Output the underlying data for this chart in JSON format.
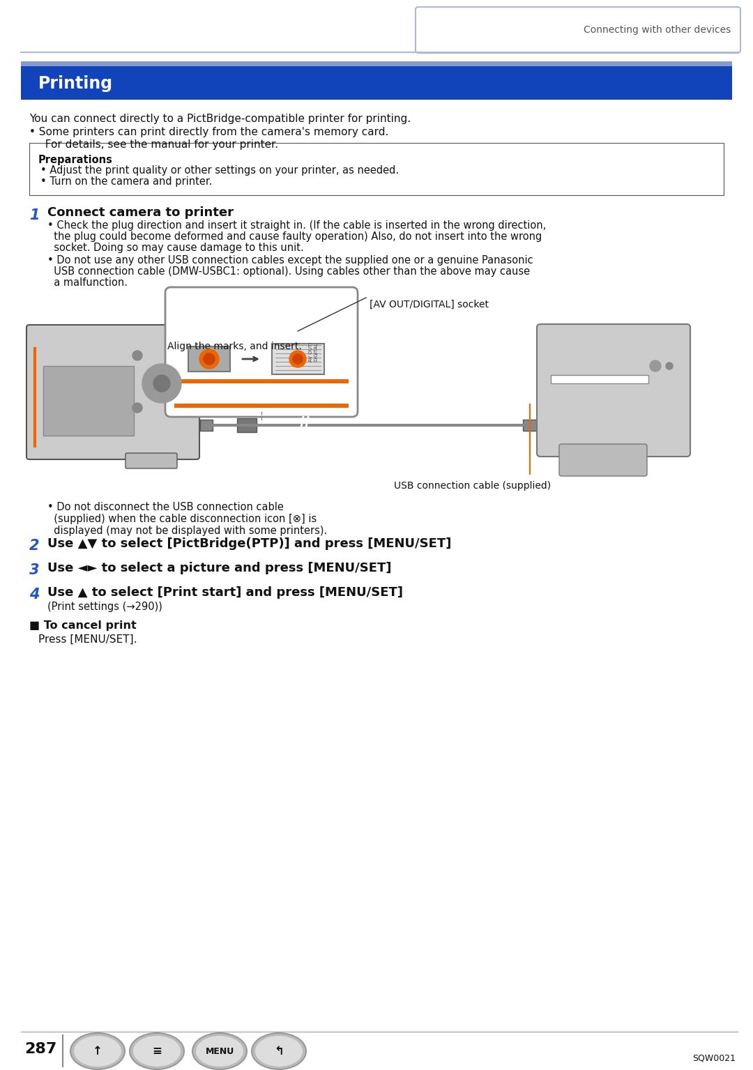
{
  "page_bg": "#ffffff",
  "header_text": "Connecting with other devices",
  "header_text_color": "#555555",
  "header_border_color": "#aabbdd",
  "title_bar_bg": "#1144bb",
  "title_bar_accent": "#8899cc",
  "title_text": "Printing",
  "title_text_color": "#ffffff",
  "body_text_color": "#111111",
  "blue_number_color": "#2255cc",
  "intro_line1": "You can connect directly to a PictBridge-compatible printer for printing.",
  "intro_bullet1": "• Some printers can print directly from the camera's memory card.",
  "intro_bullet1b": "  For details, see the manual for your printer.",
  "prep_title": "Preparations",
  "prep_bullet1": "• Adjust the print quality or other settings on your printer, as needed.",
  "prep_bullet2": "• Turn on the camera and printer.",
  "step1_num": "1",
  "step1_title": "Connect camera to printer",
  "step1_b1_l1": "• Check the plug direction and insert it straight in. (If the cable is inserted in the wrong direction,",
  "step1_b1_l2": "  the plug could become deformed and cause faulty operation) Also, do not insert into the wrong",
  "step1_b1_l3": "  socket. Doing so may cause damage to this unit.",
  "step1_b2_l1": "• Do not use any other USB connection cables except the supplied one or a genuine Panasonic",
  "step1_b2_l2": "  USB connection cable (DMW-USBC1: optional). Using cables other than the above may cause",
  "step1_b2_l3": "  a malfunction.",
  "img_label_av": "[AV OUT/DIGITAL] socket",
  "img_label_align": "Align the marks, and insert.",
  "img_label_usb": "USB connection cable (supplied)",
  "step1_note_l1": "• Do not disconnect the USB connection cable",
  "step1_note_l2": "  (supplied) when the cable disconnection icon [⊗] is",
  "step1_note_l3": "  displayed (may not be displayed with some printers).",
  "step2_num": "2",
  "step2_text": "Use ▲▼ to select [PictBridge(PTP)] and press [MENU/SET]",
  "step3_num": "3",
  "step3_text": "Use ◄► to select a picture and press [MENU/SET]",
  "step4_num": "4",
  "step4_text": "Use ▲ to select [Print start] and press [MENU/SET]",
  "step4_sub": "(Print settings (→290))",
  "cancel_title": "■ To cancel print",
  "cancel_text": "Press [MENU/SET].",
  "page_num": "287",
  "model_num": "SQW0021"
}
